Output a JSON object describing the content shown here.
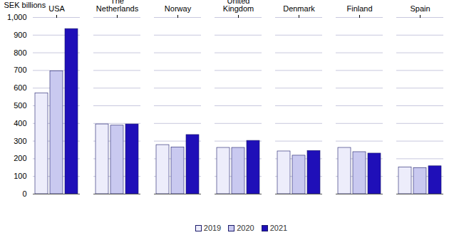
{
  "chart_data": {
    "type": "bar",
    "y_label": "SEK billions",
    "categories": [
      "USA",
      "The Netherlands",
      "Norway",
      "United Kingdom",
      "Denmark",
      "Finland",
      "Spain"
    ],
    "series": [
      {
        "name": "2019",
        "color": "#ededfb",
        "values": [
          570,
          395,
          278,
          262,
          242,
          262,
          152
        ]
      },
      {
        "name": "2020",
        "color": "#c9c9f0",
        "values": [
          695,
          388,
          265,
          262,
          218,
          238,
          148
        ]
      },
      {
        "name": "2021",
        "color": "#1f0fb8",
        "values": [
          935,
          395,
          335,
          302,
          245,
          230,
          158
        ]
      }
    ],
    "ylim": [
      0,
      1000
    ],
    "yticks": [
      0,
      100,
      200,
      300,
      400,
      500,
      600,
      700,
      800,
      900,
      1000
    ],
    "grid": true,
    "legend": "bottom"
  }
}
